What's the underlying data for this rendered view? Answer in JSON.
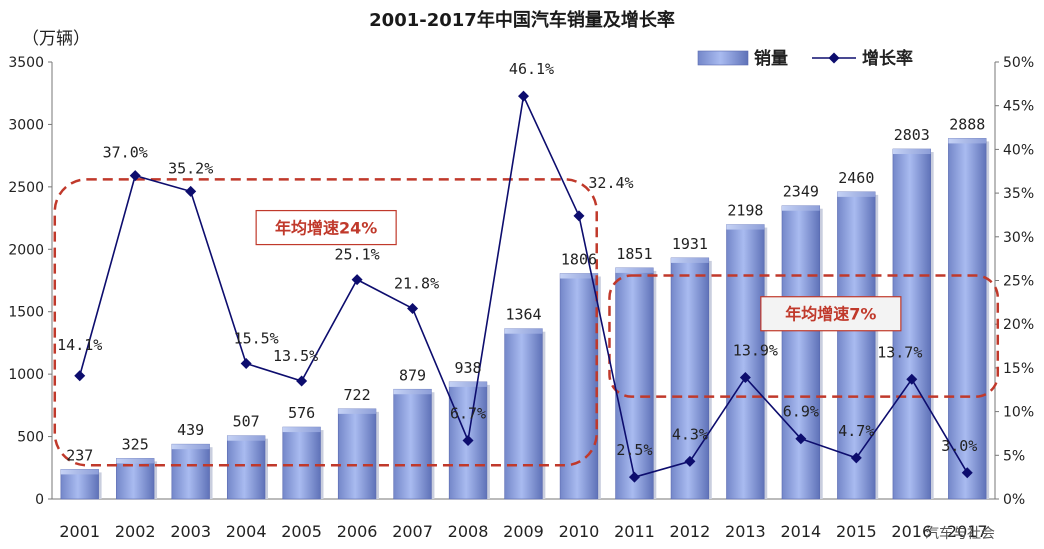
{
  "chart_data": {
    "type": "bar",
    "title": "2001-2017年中国汽车销量及增长率",
    "unit_label": "（万辆）",
    "categories": [
      "2001",
      "2002",
      "2003",
      "2004",
      "2005",
      "2006",
      "2007",
      "2008",
      "2009",
      "2010",
      "2011",
      "2012",
      "2013",
      "2014",
      "2015",
      "2016",
      "2017"
    ],
    "series": [
      {
        "name": "销量",
        "type": "bar",
        "axis": "left",
        "values": [
          237,
          325,
          439,
          507,
          576,
          722,
          879,
          938,
          1364,
          1806,
          1851,
          1931,
          2198,
          2349,
          2460,
          2803,
          2888
        ],
        "labels": [
          "237",
          "325",
          "439",
          "507",
          "576",
          "722",
          "879",
          "938",
          "1364",
          "1806",
          "1851",
          "1931",
          "2198",
          "2349",
          "2460",
          "2803",
          "2888"
        ]
      },
      {
        "name": "增长率",
        "type": "line",
        "axis": "right",
        "values": [
          14.1,
          37.0,
          35.2,
          15.5,
          13.5,
          25.1,
          21.8,
          6.7,
          46.1,
          32.4,
          2.5,
          4.3,
          13.9,
          6.9,
          4.7,
          13.7,
          3.0
        ],
        "labels": [
          "14.1%",
          "37.0%",
          "35.2%",
          "15.5%",
          "13.5%",
          "25.1%",
          "21.8%",
          "6.7%",
          "46.1%",
          "32.4%",
          "2.5%",
          "4.3%",
          "13.9%",
          "6.9%",
          "4.7%",
          "13.7%",
          "3.0%"
        ]
      }
    ],
    "ylim": [
      0,
      3500
    ],
    "y_ticks": [
      "0",
      "500",
      "1000",
      "1500",
      "2000",
      "2500",
      "3000",
      "3500"
    ],
    "y2lim": [
      0,
      50
    ],
    "y2_ticks": [
      "0%",
      "5%",
      "10%",
      "15%",
      "20%",
      "25%",
      "30%",
      "35%",
      "40%",
      "45%",
      "50%"
    ],
    "legend_position": "top-right",
    "grid": false,
    "annotations": [
      {
        "text": "年均增速24%",
        "from": "2001",
        "to": "2010"
      },
      {
        "text": "年均增速7%",
        "from": "2011",
        "to": "2017"
      }
    ],
    "colors": {
      "bar": "#8ea4e4",
      "line": "#0d0d6e",
      "annotation": "#c0392b"
    }
  },
  "watermark": "汽车与社会"
}
